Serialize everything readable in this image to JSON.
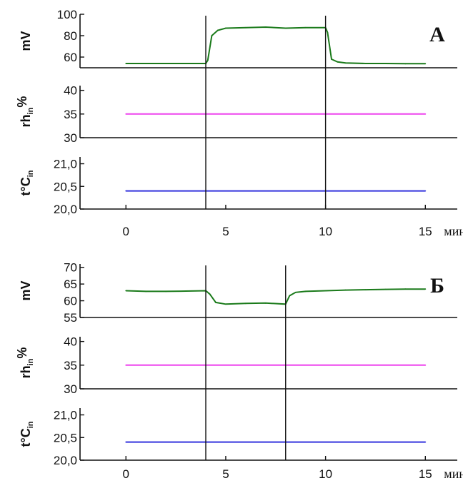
{
  "chart_data": [
    {
      "type": "line",
      "panel_letter": "А",
      "x_unit": "мин",
      "xlim": [
        -2.3,
        16.6
      ],
      "xticks": [
        0,
        5,
        10,
        15
      ],
      "x_tick_labels": [
        "0",
        "5",
        "10",
        "15"
      ],
      "event_lines_x": [
        4,
        10
      ],
      "subplots": [
        {
          "ylabel": "mV",
          "ylim": [
            50,
            100
          ],
          "yticks": [
            60,
            80,
            100
          ],
          "y_tick_labels": [
            "60",
            "80",
            "100"
          ],
          "series": [
            {
              "color": "#1a7a1a",
              "x": [
                0,
                4,
                4.1,
                4.3,
                4.6,
                5,
                6,
                7,
                8,
                9,
                10,
                10.1,
                10.3,
                10.6,
                11,
                12,
                13,
                14,
                15
              ],
              "y": [
                54,
                54,
                57,
                80,
                85,
                87,
                87.5,
                88,
                87,
                87.5,
                87.5,
                83,
                58,
                55.5,
                54.5,
                54,
                54,
                53.8,
                53.8
              ]
            }
          ]
        },
        {
          "ylabel": "rh",
          "ylabel_sub": "in",
          "ylabel_sup": "%",
          "ylim": [
            30,
            41
          ],
          "yticks": [
            30,
            35,
            40
          ],
          "y_tick_labels": [
            "30",
            "35",
            "40"
          ],
          "series": [
            {
              "color": "#ee44ee",
              "x": [
                0,
                15
              ],
              "y": [
                35,
                35
              ]
            }
          ]
        },
        {
          "ylabel": "t°C",
          "ylabel_sub": "in",
          "ylim": [
            20.0,
            21.15
          ],
          "yticks": [
            20.0,
            20.5,
            21.0
          ],
          "y_tick_labels": [
            "20,0",
            "20,5",
            "21,0"
          ],
          "series": [
            {
              "color": "#3333dd",
              "x": [
                0,
                15
              ],
              "y": [
                20.4,
                20.4
              ]
            }
          ]
        }
      ]
    },
    {
      "type": "line",
      "panel_letter": "Б",
      "x_unit": "мин",
      "xlim": [
        -2.3,
        16.6
      ],
      "xticks": [
        0,
        5,
        10,
        15
      ],
      "x_tick_labels": [
        "0",
        "5",
        "10",
        "15"
      ],
      "event_lines_x": [
        4,
        8
      ],
      "subplots": [
        {
          "ylabel": "mV",
          "ylim": [
            55,
            71
          ],
          "yticks": [
            55,
            60,
            65,
            70
          ],
          "y_tick_labels": [
            "55",
            "60",
            "65",
            "70"
          ],
          "series": [
            {
              "color": "#1a7a1a",
              "x": [
                0,
                1,
                2,
                3,
                4,
                4.2,
                4.5,
                5,
                6,
                7,
                8,
                8.2,
                8.5,
                9,
                10,
                11,
                12,
                13,
                14,
                15
              ],
              "y": [
                63,
                62.8,
                62.8,
                62.9,
                63,
                62,
                59.5,
                59,
                59.2,
                59.3,
                59,
                61.5,
                62.5,
                62.8,
                63,
                63.2,
                63.3,
                63.4,
                63.5,
                63.5
              ]
            }
          ]
        },
        {
          "ylabel": "rh",
          "ylabel_sub": "in",
          "ylabel_sup": "%",
          "ylim": [
            30,
            41
          ],
          "yticks": [
            30,
            35,
            40
          ],
          "y_tick_labels": [
            "30",
            "35",
            "40"
          ],
          "series": [
            {
              "color": "#ee44ee",
              "x": [
                0,
                15
              ],
              "y": [
                35,
                35
              ]
            }
          ]
        },
        {
          "ylabel": "t°C",
          "ylabel_sub": "in",
          "ylim": [
            20.0,
            21.15
          ],
          "yticks": [
            20.0,
            20.5,
            21.0
          ],
          "y_tick_labels": [
            "20,0",
            "20,5",
            "21,0"
          ],
          "series": [
            {
              "color": "#3333dd",
              "x": [
                0,
                15
              ],
              "y": [
                20.4,
                20.4
              ]
            }
          ]
        }
      ]
    }
  ]
}
